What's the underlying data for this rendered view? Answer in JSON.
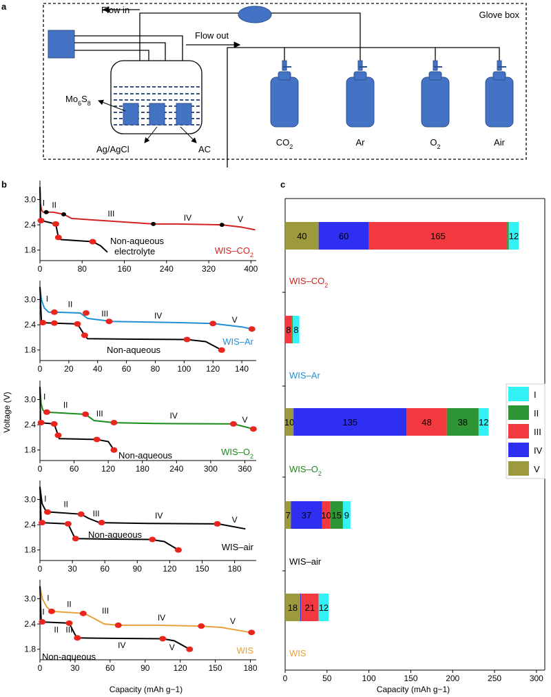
{
  "panel_a": {
    "label": "a",
    "glove_box": "Glove box",
    "flow_in": "Flow in",
    "flow_out": "Flow out",
    "electrode_mo6s8": "Mo6S8",
    "electrode_ref": "Ag/AgCl",
    "electrode_ac": "AC",
    "gases": [
      "CO2",
      "Ar",
      "O2",
      "Air"
    ]
  },
  "chart_data": [
    {
      "type": "line",
      "panel": "b",
      "ylabel": "Voltage (V)",
      "xlabel": "Capacity (mAh g−1)",
      "subplots": [
        {
          "name": "WIS–CO2",
          "color": "#d32020",
          "xlim": [
            0,
            410
          ],
          "ylim": [
            1.55,
            3.45
          ],
          "xticks": [
            0,
            80,
            160,
            240,
            320,
            400
          ],
          "yticks": [
            1.8,
            2.4,
            3.0
          ],
          "curve_label": "WIS–CO2",
          "nonaq_label": "Non-aqueous electrolyte",
          "series": [
            {
              "name": "WIS–CO2",
              "x": [
                0,
                1,
                3,
                6,
                25,
                45,
                60,
                120,
                215,
                260,
                345,
                380,
                408
              ],
              "y": [
                3.3,
                2.9,
                2.75,
                2.7,
                2.7,
                2.65,
                2.55,
                2.5,
                2.42,
                2.42,
                2.4,
                2.35,
                2.28
              ]
            },
            {
              "name": "Non-aqueous electrolyte",
              "x": [
                0,
                1,
                3,
                30,
                35,
                40,
                100,
                115,
                128
              ],
              "y": [
                3.3,
                2.55,
                2.5,
                2.42,
                2.1,
                2.05,
                2.0,
                1.9,
                1.75
              ]
            }
          ],
          "markers_main": [
            [
              12,
              2.7
            ],
            [
              45,
              2.65
            ],
            [
              215,
              2.42
            ],
            [
              345,
              2.4
            ]
          ],
          "markers_nonaq": [
            [
              2,
              2.5
            ],
            [
              30,
              2.42
            ],
            [
              35,
              2.1
            ],
            [
              100,
              2.0
            ]
          ],
          "regions": [
            {
              "text": "I",
              "x": 7,
              "y": 2.85
            },
            {
              "text": "II",
              "x": 27,
              "y": 2.8
            },
            {
              "text": "III",
              "x": 135,
              "y": 2.6
            },
            {
              "text": "IV",
              "x": 280,
              "y": 2.5
            },
            {
              "text": "V",
              "x": 380,
              "y": 2.47
            }
          ]
        },
        {
          "name": "WIS–Ar",
          "color": "#1e90d6",
          "xlim": [
            0,
            150
          ],
          "ylim": [
            1.55,
            3.45
          ],
          "xticks": [
            0,
            20,
            40,
            60,
            80,
            100,
            120,
            140
          ],
          "yticks": [
            1.8,
            2.4,
            3.0
          ],
          "curve_label": "WIS–Ar",
          "nonaq_label": "Non-aqueous",
          "series": [
            {
              "name": "WIS–Ar",
              "x": [
                0,
                1,
                3,
                6,
                10,
                28,
                33,
                50,
                100,
                120,
                140,
                147
              ],
              "y": [
                3.3,
                3.0,
                2.8,
                2.7,
                2.7,
                2.68,
                2.55,
                2.48,
                2.45,
                2.43,
                2.35,
                2.3
              ]
            },
            {
              "name": "Non-aqueous",
              "x": [
                0,
                1,
                2,
                10,
                26,
                31,
                33,
                60,
                102,
                115,
                126
              ],
              "y": [
                3.3,
                2.5,
                2.45,
                2.44,
                2.42,
                2.15,
                2.07,
                2.06,
                2.05,
                2.0,
                1.8
              ]
            }
          ],
          "markers_main": [
            [
              10,
              2.7
            ],
            [
              32,
              2.68
            ],
            [
              48,
              2.48
            ],
            [
              120,
              2.43
            ],
            [
              147,
              2.3
            ]
          ],
          "markers_nonaq": [
            [
              2,
              2.45
            ],
            [
              10,
              2.44
            ],
            [
              26,
              2.42
            ],
            [
              31,
              2.15
            ],
            [
              102,
              2.05
            ],
            [
              126,
              1.8
            ]
          ],
          "regions": [
            {
              "text": "I",
              "x": 5,
              "y": 2.95
            },
            {
              "text": "II",
              "x": 21,
              "y": 2.82
            },
            {
              "text": "III",
              "x": 45,
              "y": 2.6
            },
            {
              "text": "IV",
              "x": 82,
              "y": 2.55
            },
            {
              "text": "V",
              "x": 135,
              "y": 2.45
            }
          ]
        },
        {
          "name": "WIS–O2",
          "color": "#1a8a1a",
          "xlim": [
            0,
            380
          ],
          "ylim": [
            1.55,
            3.45
          ],
          "xticks": [
            0,
            60,
            120,
            180,
            240,
            300,
            360
          ],
          "yticks": [
            1.8,
            2.4,
            3.0
          ],
          "curve_label": "WIS–O2",
          "nonaq_label": "Non-aqueous",
          "series": [
            {
              "name": "WIS–O2",
              "x": [
                0,
                2,
                5,
                10,
                75,
                85,
                95,
                130,
                200,
                340,
                375
              ],
              "y": [
                3.3,
                2.9,
                2.75,
                2.7,
                2.65,
                2.6,
                2.5,
                2.45,
                2.43,
                2.42,
                2.3
              ]
            },
            {
              "name": "Non-aqueous",
              "x": [
                0,
                1,
                2,
                10,
                25,
                32,
                34,
                70,
                100,
                120,
                130
              ],
              "y": [
                3.3,
                2.5,
                2.45,
                2.44,
                2.42,
                2.15,
                2.07,
                2.06,
                2.05,
                2.0,
                1.8
              ]
            }
          ],
          "markers_main": [
            [
              12,
              2.7
            ],
            [
              80,
              2.65
            ],
            [
              130,
              2.45
            ],
            [
              340,
              2.42
            ],
            [
              375,
              2.3
            ]
          ],
          "markers_nonaq": [
            [
              2,
              2.45
            ],
            [
              25,
              2.42
            ],
            [
              32,
              2.15
            ],
            [
              100,
              2.05
            ],
            [
              130,
              1.8
            ]
          ],
          "regions": [
            {
              "text": "I",
              "x": 8,
              "y": 3.0
            },
            {
              "text": "II",
              "x": 45,
              "y": 2.8
            },
            {
              "text": "III",
              "x": 105,
              "y": 2.6
            },
            {
              "text": "IV",
              "x": 235,
              "y": 2.55
            },
            {
              "text": "V",
              "x": 360,
              "y": 2.45
            }
          ]
        },
        {
          "name": "WIS–air",
          "color": "#000000",
          "xlim": [
            0,
            200
          ],
          "ylim": [
            1.55,
            3.45
          ],
          "xticks": [
            0,
            30,
            60,
            90,
            120,
            150,
            180
          ],
          "yticks": [
            1.8,
            2.4,
            3.0
          ],
          "curve_label": "WIS–air",
          "nonaq_label": "Non-aqueous",
          "series": [
            {
              "name": "WIS–air",
              "x": [
                0,
                2,
                5,
                10,
                38,
                45,
                55,
                100,
                165,
                190
              ],
              "y": [
                3.3,
                2.9,
                2.75,
                2.7,
                2.65,
                2.55,
                2.45,
                2.43,
                2.42,
                2.3
              ]
            },
            {
              "name": "Non-aqueous",
              "x": [
                0,
                1,
                2,
                10,
                26,
                31,
                33,
                60,
                102,
                115,
                128
              ],
              "y": [
                3.3,
                2.5,
                2.45,
                2.44,
                2.42,
                2.15,
                2.07,
                2.06,
                2.05,
                2.0,
                1.8
              ]
            }
          ],
          "markers_main": [
            [
              7,
              2.7
            ],
            [
              38,
              2.65
            ],
            [
              57,
              2.45
            ],
            [
              164,
              2.42
            ]
          ],
          "markers_nonaq": [
            [
              2,
              2.45
            ],
            [
              26,
              2.42
            ],
            [
              33,
              2.07
            ],
            [
              104,
              2.05
            ],
            [
              128,
              1.8
            ]
          ],
          "regions": [
            {
              "text": "I",
              "x": 5,
              "y": 2.95
            },
            {
              "text": "II",
              "x": 24,
              "y": 2.82
            },
            {
              "text": "III",
              "x": 52,
              "y": 2.6
            },
            {
              "text": "IV",
              "x": 110,
              "y": 2.55
            },
            {
              "text": "V",
              "x": 180,
              "y": 2.45
            }
          ]
        },
        {
          "name": "WIS",
          "color": "#e8a038",
          "xlim": [
            0,
            185
          ],
          "ylim": [
            1.55,
            3.45
          ],
          "xticks": [
            0,
            30,
            60,
            90,
            120,
            150,
            180
          ],
          "yticks": [
            1.8,
            2.4,
            3.0
          ],
          "curve_label": "WIS",
          "nonaq_label": "Non-aqueous",
          "series": [
            {
              "name": "WIS",
              "x": [
                0,
                2,
                6,
                10,
                38,
                45,
                55,
                67,
                100,
                138,
                155,
                180
              ],
              "y": [
                3.3,
                3.0,
                2.8,
                2.7,
                2.65,
                2.55,
                2.4,
                2.37,
                2.37,
                2.35,
                2.32,
                2.2
              ]
            },
            {
              "name": "Non-aqueous",
              "x": [
                0,
                1,
                2,
                10,
                25,
                30,
                32,
                60,
                105,
                115,
                128
              ],
              "y": [
                3.3,
                2.5,
                2.45,
                2.44,
                2.42,
                2.15,
                2.07,
                2.06,
                2.05,
                2.0,
                1.8
              ]
            }
          ],
          "markers_main": [
            [
              10,
              2.7
            ],
            [
              37,
              2.65
            ],
            [
              67,
              2.37
            ],
            [
              138,
              2.35
            ],
            [
              181,
              2.2
            ]
          ],
          "markers_nonaq": [
            [
              2,
              2.45
            ],
            [
              25,
              2.42
            ],
            [
              32,
              2.07
            ],
            [
              105,
              2.05
            ],
            [
              128,
              1.8
            ]
          ],
          "regions": [
            {
              "text": "I",
              "x": 7,
              "y": 2.95
            },
            {
              "text": "II",
              "x": 25,
              "y": 2.8
            },
            {
              "text": "III",
              "x": 56,
              "y": 2.65
            },
            {
              "text": "IV",
              "x": 104,
              "y": 2.48
            },
            {
              "text": "V",
              "x": 165,
              "y": 2.4
            }
          ],
          "regions_nonaq": [
            {
              "text": "I",
              "x": 3,
              "y": 2.62
            },
            {
              "text": "II",
              "x": 14,
              "y": 2.2
            },
            {
              "text": "III",
              "x": 25,
              "y": 2.2
            },
            {
              "text": "IV",
              "x": 70,
              "y": 1.83
            },
            {
              "text": "V",
              "x": 113,
              "y": 1.78
            }
          ]
        }
      ]
    },
    {
      "type": "bar",
      "panel": "c",
      "orientation": "horizontal",
      "stacked": true,
      "xlabel": "Capacity (mAh g−1)",
      "xlim": [
        0,
        310
      ],
      "xticks": [
        0,
        50,
        100,
        150,
        200,
        250,
        300
      ],
      "legend": {
        "position": "right",
        "entries": [
          "I",
          "II",
          "III",
          "IV",
          "V"
        ]
      },
      "colors": {
        "I": "#33f2f5",
        "II": "#2e9535",
        "III": "#f2393f",
        "IV": "#2f2ff2",
        "V": "#9d9a3d"
      },
      "categories": [
        "WIS–CO2",
        "WIS–Ar",
        "WIS–O2",
        "WIS–air",
        "WIS"
      ],
      "category_colors": [
        "#d32020",
        "#1e90d6",
        "#1a8a1a",
        "#000000",
        "#e8a038"
      ],
      "stack_order": [
        "V",
        "IV",
        "III",
        "II",
        "I"
      ],
      "series": [
        {
          "name": "V",
          "values": [
            40,
            0,
            10,
            7,
            18
          ],
          "labels": [
            "40",
            "",
            "10",
            "7",
            "18"
          ]
        },
        {
          "name": "IV",
          "values": [
            60,
            0,
            135,
            37,
            1
          ],
          "labels": [
            "60",
            "",
            "135",
            "37",
            ""
          ]
        },
        {
          "name": "III",
          "values": [
            165,
            8,
            48,
            10,
            21
          ],
          "labels": [
            "165",
            "8",
            "48",
            "10",
            "21"
          ]
        },
        {
          "name": "II",
          "values": [
            2,
            1,
            38,
            15,
            0
          ],
          "labels": [
            "",
            "",
            "38",
            "15",
            ""
          ]
        },
        {
          "name": "I",
          "values": [
            12,
            8,
            12,
            9,
            12
          ],
          "labels": [
            "12",
            "8",
            "12",
            "9",
            "12"
          ]
        }
      ]
    }
  ]
}
